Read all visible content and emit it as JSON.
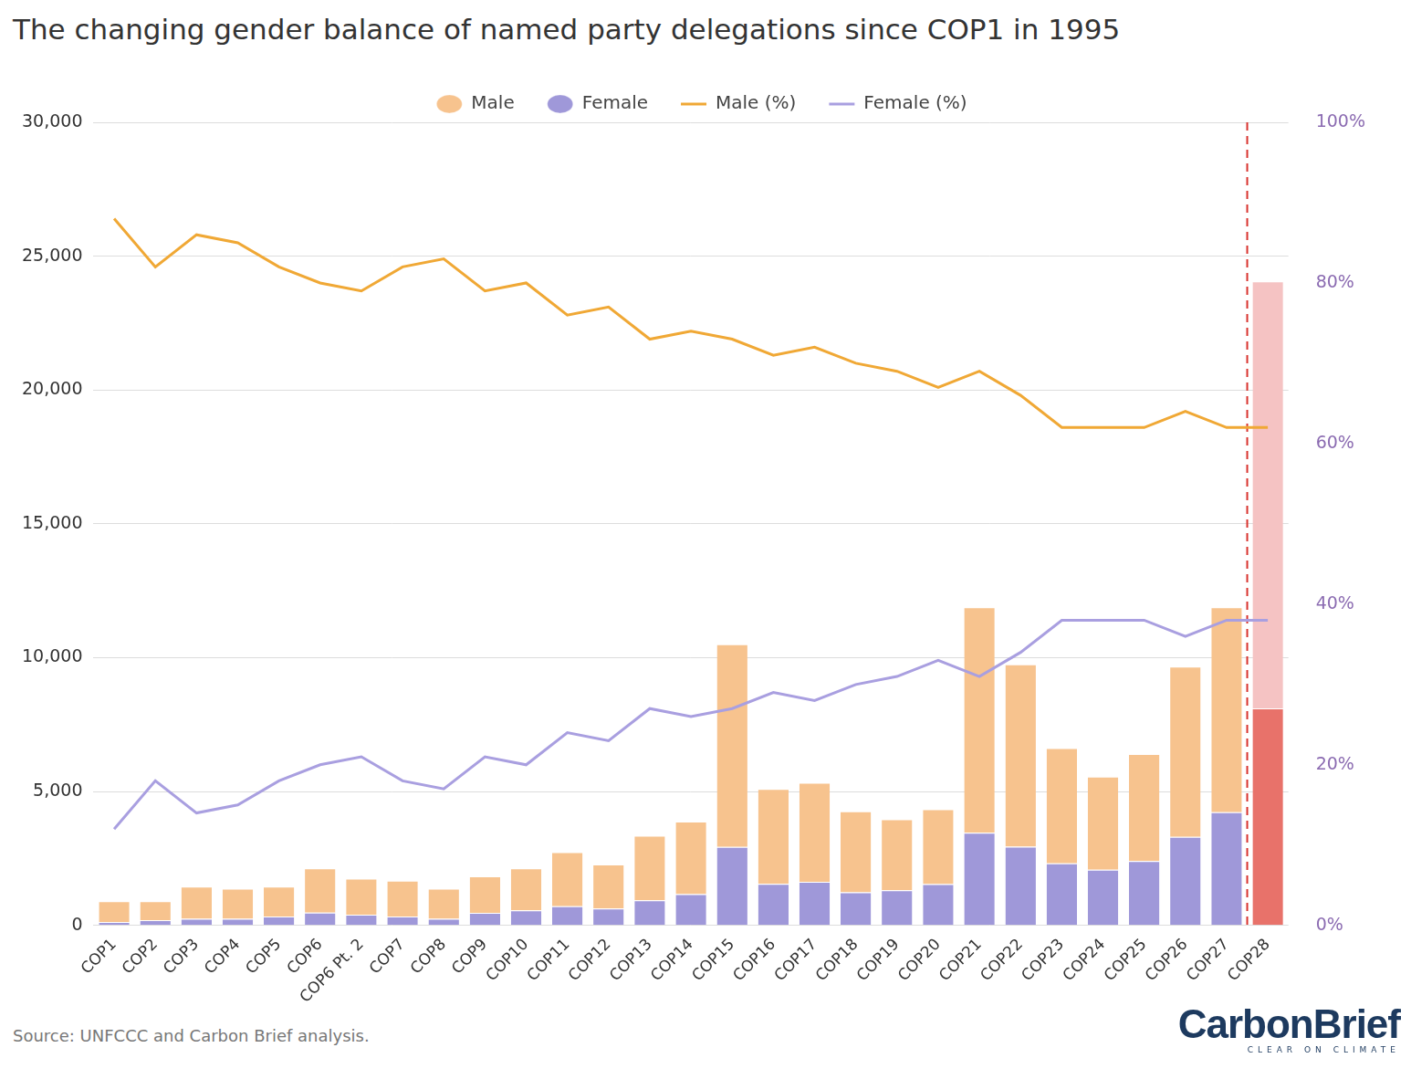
{
  "chart_data": {
    "type": "bar",
    "title": "The changing gender balance of named party delegations since COP1 in 1995",
    "source": "Source: UNFCCC and Carbon Brief analysis.",
    "logo": [
      "CarbonBrief",
      "CLEAR ON CLIMATE"
    ],
    "categories": [
      "COP1",
      "COP2",
      "COP3",
      "COP4",
      "COP5",
      "COP6",
      "COP6 Pt. 2",
      "COP7",
      "COP8",
      "COP9",
      "COP10",
      "COP11",
      "COP12",
      "COP13",
      "COP14",
      "COP15",
      "COP16",
      "COP17",
      "COP18",
      "COP19",
      "COP20",
      "COP21",
      "COP22",
      "COP23",
      "COP24",
      "COP25",
      "COP26",
      "COP27",
      "COP28"
    ],
    "stacked": true,
    "grid": true,
    "legend": "top",
    "series": [
      {
        "name": "Male",
        "type": "bar",
        "color": "#f7c38e",
        "colors": [
          "#f7c38e",
          "#f7c38e",
          "#f7c38e",
          "#f7c38e",
          "#f7c38e",
          "#f7c38e",
          "#f7c38e",
          "#f7c38e",
          "#f7c38e",
          "#f7c38e",
          "#f7c38e",
          "#f7c38e",
          "#f7c38e",
          "#f7c38e",
          "#f7c38e",
          "#f7c38e",
          "#f7c38e",
          "#f7c38e",
          "#f7c38e",
          "#f7c38e",
          "#f7c38e",
          "#f7c38e",
          "#f7c38e",
          "#f7c38e",
          "#f7c38e",
          "#f7c38e",
          "#f7c38e",
          "#f7c38e",
          "#f5c3c3"
        ],
        "values": [
          770,
          700,
          1200,
          1120,
          1120,
          1650,
          1350,
          1340,
          1120,
          1360,
          1570,
          2020,
          1650,
          2410,
          2710,
          7570,
          3550,
          3700,
          3020,
          2650,
          2800,
          8420,
          6810,
          4300,
          3480,
          4000,
          6360,
          7650,
          15950
        ]
      },
      {
        "name": "Female",
        "type": "bar",
        "color": "#9f98d9",
        "colors": [
          "#9f98d9",
          "#9f98d9",
          "#9f98d9",
          "#9f98d9",
          "#9f98d9",
          "#9f98d9",
          "#9f98d9",
          "#9f98d9",
          "#9f98d9",
          "#9f98d9",
          "#9f98d9",
          "#9f98d9",
          "#9f98d9",
          "#9f98d9",
          "#9f98d9",
          "#9f98d9",
          "#9f98d9",
          "#9f98d9",
          "#9f98d9",
          "#9f98d9",
          "#9f98d9",
          "#9f98d9",
          "#9f98d9",
          "#9f98d9",
          "#9f98d9",
          "#9f98d9",
          "#9f98d9",
          "#9f98d9",
          "#e8726a"
        ],
        "values": [
          130,
          200,
          250,
          250,
          330,
          480,
          400,
          330,
          250,
          470,
          560,
          720,
          630,
          940,
          1170,
          2930,
          1550,
          1630,
          1240,
          1310,
          1540,
          3460,
          2940,
          2320,
          2080,
          2400,
          3310,
          4230,
          8110
        ]
      },
      {
        "name": "Male (%)",
        "type": "line",
        "axis": "y2",
        "color": "#f0a835",
        "values": [
          88,
          82,
          86,
          85,
          82,
          80,
          79,
          82,
          83,
          79,
          80,
          76,
          77,
          73,
          74,
          73,
          71,
          72,
          70,
          69,
          67,
          69,
          66,
          62,
          62,
          62,
          64,
          62,
          62
        ]
      },
      {
        "name": "Female (%)",
        "type": "line",
        "axis": "y2",
        "color": "#a99fe0",
        "values": [
          12,
          18,
          14,
          15,
          18,
          20,
          21,
          18,
          17,
          21,
          20,
          24,
          23,
          27,
          26,
          27,
          29,
          28,
          30,
          31,
          33,
          31,
          34,
          38,
          38,
          38,
          36,
          38,
          38
        ]
      }
    ],
    "ylim": [
      0,
      30000
    ],
    "yticks": [
      0,
      {
        "value": 5000,
        "label": "5,000"
      },
      {
        "value": 10000,
        "label": "10,000"
      },
      {
        "value": 15000,
        "label": "15,000"
      },
      {
        "value": 20000,
        "label": "20,000"
      },
      {
        "value": 25000,
        "label": "25,000"
      },
      {
        "value": 30000,
        "label": "30,000"
      }
    ],
    "y2lim": [
      0,
      100
    ],
    "y2ticks": [
      {
        "value": 0,
        "label": "0%"
      },
      {
        "value": 20,
        "label": "20%"
      },
      {
        "value": 40,
        "label": "40%"
      },
      {
        "value": 60,
        "label": "60%"
      },
      {
        "value": 80,
        "label": "80%"
      },
      {
        "value": 100,
        "label": "100%"
      }
    ]
  }
}
